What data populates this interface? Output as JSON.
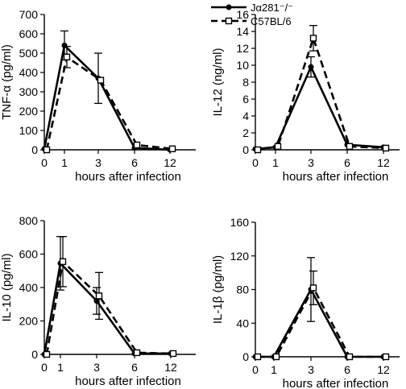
{
  "legend": {
    "items": [
      {
        "label": "Jα281⁻/⁻",
        "style": "solid",
        "marker": "filled-circle"
      },
      {
        "label": "C57BL/6",
        "style": "dashed",
        "marker": "open-square"
      }
    ]
  },
  "chart_data": [
    {
      "type": "line",
      "ylabel": "TNF-α (pg/ml)",
      "xlabel": "hours after infection",
      "x_categories": [
        "0",
        "1",
        "3",
        "6",
        "12"
      ],
      "x": [
        0,
        1,
        3,
        6,
        12
      ],
      "yticks": [
        "0",
        "100",
        "200",
        "300",
        "400",
        "500",
        "600",
        "700"
      ],
      "ylim": [
        0,
        700
      ],
      "grid": false,
      "series": [
        {
          "name": "Jα281⁻/⁻",
          "values": [
            5,
            540,
            370,
            10,
            0
          ],
          "err": [
            0,
            75,
            130,
            0,
            0
          ]
        },
        {
          "name": "C57BL/6",
          "values": [
            0,
            480,
            360,
            25,
            5
          ],
          "err": [
            0,
            55,
            0,
            0,
            0
          ]
        }
      ]
    },
    {
      "type": "line",
      "ylabel": "IL-12 (ng/ml)",
      "xlabel": "hours after infection",
      "x_categories": [
        "0",
        "1",
        "3",
        "6",
        "12"
      ],
      "x": [
        0,
        1,
        3,
        6,
        12
      ],
      "yticks": [
        "0",
        "2",
        "4",
        "6",
        "8",
        "10",
        "12",
        "14",
        "16"
      ],
      "ylim": [
        0,
        16
      ],
      "grid": false,
      "series": [
        {
          "name": "Jα281⁻/⁻",
          "values": [
            0.1,
            0.3,
            9.8,
            0.6,
            0.3
          ],
          "err": [
            0,
            0,
            1.2,
            0,
            0
          ]
        },
        {
          "name": "C57BL/6",
          "values": [
            0,
            0.4,
            13.2,
            0.4,
            0.2
          ],
          "err": [
            0,
            0,
            1.5,
            0,
            0
          ]
        }
      ]
    },
    {
      "type": "line",
      "ylabel": "IL-10 (pg/ml)",
      "xlabel": "hours after infection",
      "x_categories": [
        "0",
        "1",
        "3",
        "6",
        "12"
      ],
      "x": [
        0,
        1,
        3,
        6,
        12
      ],
      "yticks": [
        "0",
        "200",
        "400",
        "600",
        "800"
      ],
      "ylim": [
        0,
        800
      ],
      "grid": false,
      "series": [
        {
          "name": "Jα281⁻/⁻",
          "values": [
            0,
            545,
            320,
            5,
            5
          ],
          "err": [
            0,
            160,
            80,
            0,
            0
          ]
        },
        {
          "name": "C57BL/6",
          "values": [
            0,
            555,
            350,
            10,
            5
          ],
          "err": [
            0,
            150,
            140,
            0,
            0
          ]
        }
      ]
    },
    {
      "type": "line",
      "ylabel": "IL-1β (pg/ml)",
      "xlabel": "hours after infection",
      "x_categories": [
        "0",
        "1",
        "3",
        "6",
        "12"
      ],
      "x": [
        0,
        1,
        3,
        6,
        12
      ],
      "yticks": [
        "0",
        "40",
        "80",
        "120",
        "160"
      ],
      "ylim": [
        0,
        160
      ],
      "grid": false,
      "series": [
        {
          "name": "Jα281⁻/⁻",
          "values": [
            0,
            0,
            80,
            0,
            0
          ],
          "err": [
            0,
            0,
            38,
            0,
            0
          ]
        },
        {
          "name": "C57BL/6",
          "values": [
            0,
            0,
            82,
            0,
            0
          ],
          "err": [
            0,
            0,
            20,
            0,
            0
          ]
        }
      ]
    }
  ]
}
